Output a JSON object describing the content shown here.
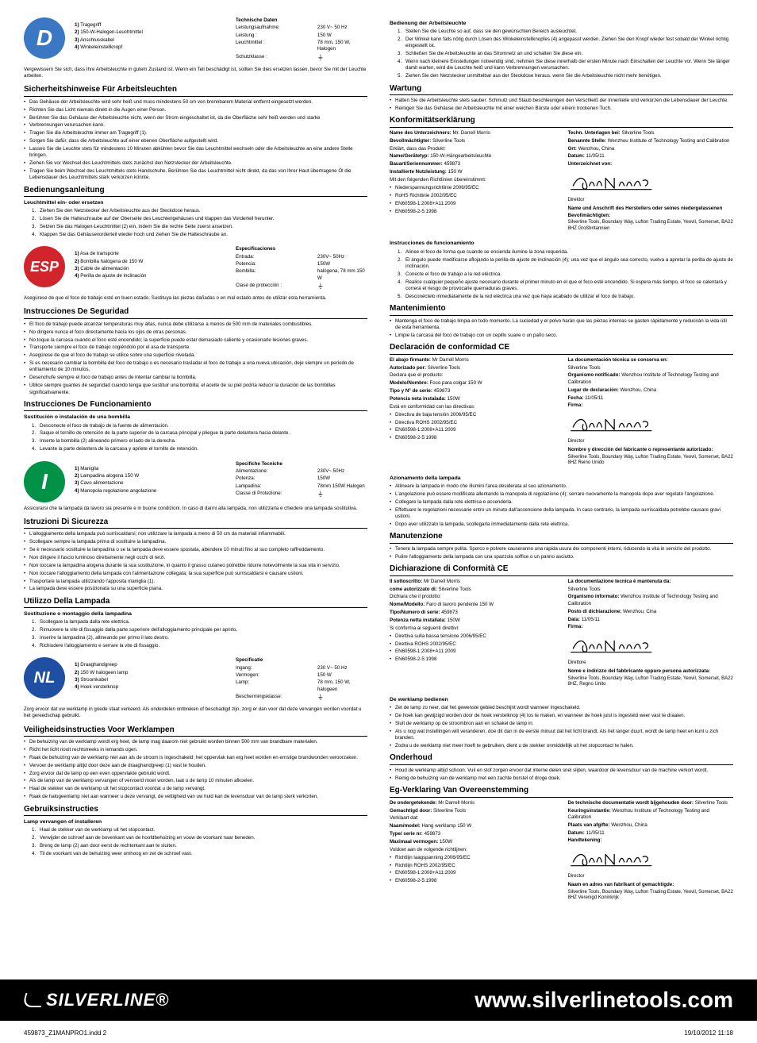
{
  "footer": {
    "brand": "SILVERLINE",
    "url": "www.silverlinetools.com"
  },
  "meta": {
    "file": "459873_Z1MANPRO1.indd   2",
    "timestamp": "19/10/2012   11:18"
  },
  "de": {
    "flag": "D",
    "parts": [
      {
        "n": "1)",
        "t": "Tragegriff"
      },
      {
        "n": "2)",
        "t": "150-W-Halogen-Leuchtmittel"
      },
      {
        "n": "3)",
        "t": "Anschlusskabel"
      },
      {
        "n": "4)",
        "t": "Winkeleinstellknopf"
      }
    ],
    "tech_title": "Technische Daten",
    "tech": [
      {
        "k": "Leistungsaufnahme:",
        "v": "230 V~  50 Hz"
      },
      {
        "k": "Leistung :",
        "v": "150 W"
      },
      {
        "k": "Leuchtmittel :",
        "v": "78 mm, 150 W, Halogen"
      },
      {
        "k": "Schutzklasse :",
        "v": "⏚"
      }
    ],
    "intro": "Vergewissern Sie sich, dass Ihre Arbeitsleuchte in gutem Zustand ist. Wenn ein Teil beschädigt ist, sollten Sie dies ersetzen lassen, bevor Sie mit der Leuchte arbeiten.",
    "safety_h": "Sicherheitshinweise Für Arbeitsleuchten",
    "safety": [
      "Das Gehäuse der Arbeitsleuchte wird sehr heiß und muss mindestens 50 cm von brennbarem Material entfernt eingesetzt werden.",
      "Richten Sie das Licht niemals direkt in die Augen einer Person.",
      "Berühren Sie das Gehäuse der Arbeitsleuchte nicht, wenn der Strom eingeschaltet ist, da die Oberfläche sehr heiß werden und starke",
      "Verbrennungen verursachen kann.",
      "Tragen Sie die Arbeitsleuchte immer am Tragegriff (1).",
      "Sorgen Sie dafür, dass die Arbeitsleuchte auf einer ebenen Oberfläche aufgestellt wird.",
      "Lassen Sie die Leuchte stets für mindestens 10 Minuten abkühlen bevor Sie das Leuchtmittel wechseln oder die Arbeitsleuchte an eine andere Stelle bringen.",
      "Ziehen Sie vor Wechsel des Leuchtmittels stets zunächst den Netzstecker der Arbeitsleuchte.",
      "Tragen Sie beim Wechsel des Leuchtmittels stets Handschuhe. Berühren Sie das Leuchtmittel nicht direkt, da das von Ihrer Haut übertragene Öl die Lebensdauer des Leuchtmittels stark verkürzen könnte."
    ],
    "oper_h": "Bedienungsanleitung",
    "oper_sub": "Leuchtmittel ein- oder ersetzen",
    "oper": [
      "Ziehen Sie den Netzstecker der Arbeitsleuchte aus der Steckdose heraus.",
      "Lösen Sie die Halteschraube auf der Oberseite des Leuchtengehäuses und klappen das Vorderteil herunter.",
      "Setzen Sie das Halogen-Leuchtmittel (2) ein, indem Sie die rechte Seite zuerst ansetzen.",
      "Klappen Sie das Gehäusevorderteil wieder hoch und ziehen Sie die Halteschraube an."
    ],
    "r_oper_h": "Bedienung der Arbeitsleuchte",
    "r_oper": [
      "Stellen Sie die Leuchte so auf, dass sie den gewünschten Bereich ausleuchtet.",
      "Der Winkel kann falls nötig durch Lösen des Winkeleinstellknopfes (4) angepasst werden. Ziehen Sie den Knopf wieder fest sobald der Winkel richtig eingestellt ist.",
      "Schließen Sie die Arbeitsleuchte an das Stromnetz an und schalten Sie diese ein.",
      "Wenn nach kleinere Einstellungen notwendig sind, nehmen Sie diese innerhalb der ersten Minute nach Einschalten der Leuchte vor. Wenn Sie länger damit warten, wird die Leuchte heiß und kann Verbrennungen verursachen.",
      "Ziehen Sie den Netzstecker unmittelbar aus der Steckdose heraus, wenn Sie die Arbeitsleuchte nicht mehr benötigen."
    ],
    "maint_h": "Wartung",
    "maint": [
      "Halten Sie die Arbeitsleuchte stets sauber. Schmutz und Staub beschleunigen den Verschleiß der Innenteile und verkürzen die Lebensdauer der Leuchte.",
      "Reinigen Sie das Gehäuse der Arbeitsleuchte mit einer weichen Bürste oder einem trockenen Tuch."
    ],
    "decl_h": "Konformitätserklärung",
    "decl_left": [
      {
        "b": "Name des Unterzeichners:",
        "t": " Mr. Darrell Morris"
      },
      {
        "b": "Bevollmächtigter:",
        "t": " Silverline Tools"
      },
      {
        "b": "",
        "t": "Erklärt, dass das Produkt:"
      },
      {
        "b": "Name/Gerätetyp:",
        "t": " 150-W-Hängearbeitsleuchte"
      },
      {
        "b": "Bauart/Seriennummer:",
        "t": " 459873"
      },
      {
        "b": "Installierte Nutzleistung:",
        "t": " 150 W"
      },
      {
        "b": "",
        "t": "Mit den folgenden Richtlinien übereinstimmt:"
      }
    ],
    "decl_dirs": [
      "Niederspannungsrichtlinie 2006/95/EC",
      "RoHS Richtlinie 2002/95/EC",
      "EN60598-1:2008+A11:2009",
      "EN60598-2-5:1998"
    ],
    "decl_right": [
      {
        "b": "Techn. Unterlagen bei:",
        "t": " Silverline Tools"
      },
      {
        "b": "Benannte Stelle:",
        "t": " Wenzhou Institute of Technology Testing and Calibration"
      },
      {
        "b": "Ort:",
        "t": " Wenzhou, China"
      },
      {
        "b": "Datum:",
        "t": " 11/05/11"
      },
      {
        "b": "Unterzeichnet von:",
        "t": ""
      }
    ],
    "decl_director": "Direktor",
    "decl_addr_title": "Name und Anschrift des Herstellers oder seines niedergelassenen Bevollmächtigten:",
    "decl_addr": "Silverline Tools, Boundary Way, Lufton Trading Estate, Yeovil, Somerset, BA22 8HZ Großbritannien"
  },
  "es": {
    "flag": "ESP",
    "parts": [
      {
        "n": "1)",
        "t": "Asa de transporte"
      },
      {
        "n": "2)",
        "t": "Bombilla halógena de 150 W"
      },
      {
        "n": "3)",
        "t": "Cable de alimentación"
      },
      {
        "n": "4)",
        "t": "Perilla de ajuste de inclinación"
      }
    ],
    "tech_title": "Especificaciones",
    "tech": [
      {
        "k": "Entrada:",
        "v": "230V~  50Hz"
      },
      {
        "k": "Potencia:",
        "v": "150W"
      },
      {
        "k": "Bombilla:",
        "v": "halógena, 78 mm 150 W"
      },
      {
        "k": "Clase de protección :",
        "v": "⏚"
      }
    ],
    "intro": "Asegúrese de que el foco de trabajo esté en buen estado. Sustituya las piezas dañadas o en mal estado antes de utilizar esta herramienta.",
    "safety_h": "Instrucciones De Seguridad",
    "safety": [
      "El foco de trabajo puede  alcanzar temperaturas muy altas, nunca debe utilizarse a menos de 500 mm de materiales combustibles.",
      "No dirigere nunca el foco directamente hacia los ojos de otras personas.",
      "No toque la carcasa cuando el foco esté encendido; la superficie puede estar demasiado caliente y ocasionarle lesiones graves.",
      "Transporte siempre el foco de trabajo cogiéndolo por el asa de transporte.",
      "Asegúrese de que el foco de trabajo se utilice sobre una superficie nivelada.",
      "Si es necesario cambiar la bombilla del foco de trabajo o es necesario trasladar el foco de trabajo a una nueva ubicación, deje siempre un periodo de enfriamiento de 10 minutos.",
      "Desenchufe siempre el foco de trabajo antes de intentar cambiar la bombilla.",
      "Utilice siempre guantes de seguridad cuando tenga que sustituir una bombilla; el aceite de su piel podría reducir la duración de las bombillas significativamente."
    ],
    "oper_h": "Instrucciones De Funcionamiento",
    "oper_sub": "Sustitución o instalación de una bombilla",
    "oper": [
      "Desconecte el foco de trabajo de la fuente de alimentación.",
      "Saque el tornillo de retención de la parte superior de la carcasa principal y pliegue la parte delantera hacia delante.",
      "Inserte la bombilla (2) alineando primero el lado de la derecha.",
      "Levante la parte delantera de la carcasa y apriete el tornillo de retención."
    ],
    "r_oper_h": "Instrucciones de funcionamiento",
    "r_oper": [
      "Alinee el foco de forma que cuando se encienda ilumine la zona requerida.",
      "El ángulo puede modificarse aflojando la perilla de ajuste de inclinación (4); una vez que el ángulo sea correcto, vuelva a apretar la perilla de ajuste de inclinación.",
      "Conecte el foco de trabajo a la red eléctrica.",
      "Realice cualquier pequeño ajuste necesario durante el primer minuto en el que el foco esté encendido. Si espera más tiempo, el foco se calentará y correrá el riesgo de provocarle quemaduras graves.",
      "Desconéctelo inmediatamente de la red eléctrica una vez que haya acabado de utilizar el foco de trabajo."
    ],
    "maint_h": "Mantenimiento",
    "maint": [
      "Mantenga el foco de trabajo limpia en todo momento. La suciedad y el polvo harán que las piezas internas se gasten rápidamente y reducirán la vida útil de esta herramienta.",
      "Limpie la carcasa del foco de trabajo con un cepillo suave o un paño seco."
    ],
    "decl_h": "Declaración de conformidad CE",
    "decl_left": [
      {
        "b": "El abajo firmante:",
        "t": " Mr Darrell Morris"
      },
      {
        "b": "Autorizado por:",
        "t": " Silverline Tools"
      },
      {
        "b": "",
        "t": "Declara que el producto:"
      },
      {
        "b": "Modelo/Nombre:",
        "t": " Foco para colgar 150 W"
      },
      {
        "b": "Tipo y N° de serie:",
        "t": " 459873"
      },
      {
        "b": "Potencia neta instalada:",
        "t": " 150W"
      },
      {
        "b": "",
        "t": "Está en conformidad con las directivas:"
      }
    ],
    "decl_dirs": [
      "Directiva de baja tensión 2006/95/EC",
      "Directiva ROHS 2002/95/EC",
      "EN60598-1:2008+A11:2009",
      "EN60598-2-5:1998"
    ],
    "decl_right": [
      {
        "b": "La documentación técnica se conserva en:",
        "t": ""
      },
      {
        "b": "",
        "t": "Silverline Tools"
      },
      {
        "b": "Organismo notificado:",
        "t": " Wenzhou Institute of Technology Testing and Calibration"
      },
      {
        "b": "Lugar de declaración:",
        "t": " Wenzhou, China"
      },
      {
        "b": "Fecha:",
        "t": " 11/05/11"
      },
      {
        "b": "Firma:",
        "t": ""
      }
    ],
    "decl_director": "Director",
    "decl_addr_title": "Nombre y dirección del fabricante o representante autorizado:",
    "decl_addr": "Silverline Tools, Boundary Way, Lufton Trading Estate, Yeovil, Somerset, BA22 8HZ Reino Unido"
  },
  "it": {
    "flag": "I",
    "parts": [
      {
        "n": "1)",
        "t": "Maniglia"
      },
      {
        "n": "2)",
        "t": "Lampadina alogena 150 W"
      },
      {
        "n": "3)",
        "t": "Cavo alimentazione"
      },
      {
        "n": "4)",
        "t": "Manopola regolazione angolazione"
      }
    ],
    "tech_title": "Specifiche Tecniche",
    "tech": [
      {
        "k": "Alimentazione:",
        "v": "230V~  50Hz"
      },
      {
        "k": "Potenza:",
        "v": "150W"
      },
      {
        "k": "Lampadina:",
        "v": "78mm 150W Halogen"
      },
      {
        "k": "Classe di Protezione:",
        "v": "⏚"
      }
    ],
    "intro": "Assicurarsi che la lampada da lavoro sia presente e in buone condizioni. In caso di danni alla lampada, non utilizzarla e chiedere una lampada sostitutiva.",
    "safety_h": "Istruzioni Di Sicurezza",
    "safety": [
      "L'alloggiamento della lampada può surriscaldarsi; non utilizzare la lampada a meno di 50 cm da materiali infiammabili.",
      "Scollegare sempre la lampada prima di sostituire la lampadina.",
      "Se è necessario sostituire la lampadina o se la lampada deve essere spostata, attendere 10 minuti fino al suo completo raffreddamento.",
      "Non dirigere il fascio luminoso direttamente negli occhi di terzi.",
      "Non toccare la lampadina alogena durante la sua sostituzione, in quanto il grasso cutaneo potrebbe ridurre notevolmente la sua vita in servizio.",
      "Non toccare l'alloggiamento della lampada con l'alimentazione collegata; la sua superficie può surriscaldarsi e causare ustioni.",
      "Trasportare la lampada utilizzando l'apposita maniglia (1).",
      "La lampada deve essere posizionata su una superficie piana."
    ],
    "oper_h": "Utilizzo Della Lampada",
    "oper_sub": "Sostituzione o montaggio della lampadina",
    "oper": [
      "Scollegare la lampada dalla rete elettrica.",
      "Rimuovere la vite di fissaggio dalla parte superiore dell'alloggiamento principale per aprirlo.",
      "Inserire la lampadina (2), allineando per primo il lato destro.",
      "Richiudere l'alloggiamento e serrare la vite di fissaggio."
    ],
    "r_oper_h": "Azionamento della lampada",
    "r_oper_b": [
      "Allineare la lampada in modo che illumini l'area desiderata al suo azionamento.",
      "L'angolazione può essere modificata allentando la manopola di regolazione (4); serrare nuovamente la manopola dopo aver regolato l'angolazione.",
      "Collegare la lampada dalla rete elettrica e accenderla.",
      "Effettuare le regolazioni necessarie entro un minuto dall'accensione della lampada. In caso contrario, la lampada surriscaldata potrebbe causare gravi ustioni.",
      "Dopo aver utilizzato la lampada, scollegarla immediatamente dalla rete elettrica."
    ],
    "maint_h": "Manutenzione",
    "maint": [
      "Tenere la lampada sempre pulita. Sporco e polvere causeranno una rapida usura dei componenti interni, riducendo la vita in servizio del prodotto.",
      "Pulire l'alloggiamento della lampada con una spazzola soffice o un panno asciutto."
    ],
    "decl_h": "Dichiarazione di Conformità CE",
    "decl_left": [
      {
        "b": "Il sottoscritto:",
        "t": " Mr Darrell Morris"
      },
      {
        "b": "come autorizzato di:",
        "t": " Silverline Tools"
      },
      {
        "b": "",
        "t": "Dichiara che il prodotto:"
      },
      {
        "b": "Nome/Modello:",
        "t": " Faro di lavoro pendente 150 W"
      },
      {
        "b": "Tipo/Numero di serie:",
        "t": " 459873"
      },
      {
        "b": "Potenza netta installata:",
        "t": " 150W"
      },
      {
        "b": "",
        "t": "Si conforma ai seguenti direttivi:"
      }
    ],
    "decl_dirs": [
      "Direttiva sulla bassa tensione 2006/95/EC",
      "Direttiva ROHS 2002/95/EC",
      "EN60598-1:2008+A11:2009",
      "EN60598-2-5:1998"
    ],
    "decl_right": [
      {
        "b": "La documentazione tecnica è mantenuta da:",
        "t": ""
      },
      {
        "b": "",
        "t": "Silverline Tools"
      },
      {
        "b": "Organismo informato:",
        "t": " Wenzhou Institute of Technology Testing and Calibration"
      },
      {
        "b": "Posto di dichiarazione:",
        "t": " Wenzhou, Cina"
      },
      {
        "b": "Data:",
        "t": " 11/05/11"
      },
      {
        "b": "Firma:",
        "t": ""
      }
    ],
    "decl_director": "Direttore",
    "decl_addr_title": "Nome e indirizzo del fabbricante oppure persona autorizzata:",
    "decl_addr": "Silverline Tools, Boundary Way, Lufton Trading Estate, Yeovil, Somerset, BA22 8HZ, Regno Unito"
  },
  "nl": {
    "flag": "NL",
    "parts": [
      {
        "n": "1)",
        "t": "Draaghandgreep"
      },
      {
        "n": "2)",
        "t": "150 W halogeen lamp"
      },
      {
        "n": "3)",
        "t": "Stroomkabel"
      },
      {
        "n": "4)",
        "t": "Hoek verstelknop"
      }
    ],
    "tech_title": "Specificatie",
    "tech": [
      {
        "k": "Ingang:",
        "v": "230 V~  50 Hz"
      },
      {
        "k": "Vermogen:",
        "v": "150 W"
      },
      {
        "k": "Lamp:",
        "v": "78 mm, 150 W, halogeen"
      },
      {
        "k": "Beschermingsklasse:",
        "v": "⏚"
      }
    ],
    "intro": "Zorg ervoor dat uw werklamp in goede staat verkeerd. Als onderdelen ontbreken of beschadigd zijn, zorg er dan voor dat deze vervangen worden voordat u het gereedschap gebruikt.",
    "safety_h": "Veiligheidsinstructies Voor Werklampen",
    "safety": [
      "De behuizing van de werklamp wordt erg heet, de lamp mag daarom niet gebruikt worden binnen 500 mm van brandbare materialen.",
      "Richt het licht nooit rechtstreeks in iemands ogen.",
      "Raak de behuizing van de werklamp niet aan als de stroom is ingeschakeld; het oppervlak kan erg heet worden en ernstige brandwonden veroorzaken.",
      "Vervoer de werklamp altijd door deze aan de draaghandgreep (1) vast te houden.",
      "Zorg ervoor dat de lamp op een even oppervlakte gebruikt wordt.",
      "Als de lamp van de werklamp vervangen of vervoerd moet worden, laat u de lamp 10 minuten afkoelen.",
      "Haal de stekker van de werklamp uit het stopcontact voordat u de lamp vervangt.",
      "Raak de halogeenlamp niet aan wanneer u deze vervangt, de vettigheid van uw huid kan de levensduur van de lamp sterk verkorten."
    ],
    "oper_h": "Gebruiksinstructies",
    "oper_sub": "Lamp vervangen of installeren",
    "oper": [
      "Haal de stekker van de werklamp uit het stopcontact.",
      "Verwijder de schroef aan de bovenkant van de hoofdbehuizing en vouw de voorkant naar beneden.",
      "Breng de lamp (2) aan door eerst de rechterkant aan te sluiten.",
      "Til de voorkant van de behuizing weer omhoog en zet de schroef vast."
    ],
    "r_oper_h": "De werklamp bedienen",
    "r_oper_b": [
      "Zet de lamp zo neer, dat het gewenste gebied beschijnt wordt wanneer ingeschakeld.",
      "De hoek kan gewijzigd worden door de hoek verstelknop (4) los te maken, en wanneer de hoek juist is ingesteld weer vast te draaien.",
      "Sluit de werklamp op de stroombron aan en schakel de lamp in.",
      "Als u nog wat instellingen wilt veranderen, doe dit dan in de eerste minuut dat het licht brandt. Als het langer duurt, wordt de lamp heet en kunt u zich branden.",
      "Zodra u de werklamp niet meer hoeft te gebruiken, dient u de stekker onmiddellijk uit het stopcontact te halen."
    ],
    "maint_h": "Onderhoud",
    "maint": [
      "Houd de werklamp altijd schoon. Vuil en stof zorgen ervoor dat interne delen snel slijten, waardoor de levensduur van de machine verkort wordt.",
      "Reinig de behuizing van de werklamp met een zachte borstel of droge doek."
    ],
    "decl_h": "Eg-Verklaring Van Overeenstemming",
    "decl_left": [
      {
        "b": "De ondergetekende:",
        "t": " Mr Darrell Morris"
      },
      {
        "b": "Gemachtigd door:",
        "t": " Silverline Tools"
      },
      {
        "b": "",
        "t": "Verklaart dat:"
      },
      {
        "b": "Naam/model:",
        "t": " Hang werklamp 150 W"
      },
      {
        "b": "Type/ serie nr:",
        "t": " 459873"
      },
      {
        "b": "Maximaal vermogen:",
        "t": " 150W"
      },
      {
        "b": "",
        "t": "Voldoet aan de volgende richtlijnen:"
      }
    ],
    "decl_dirs": [
      "Richtlijn laagspanning 2006/95/EC",
      "Richtlijn ROHS 2002/95/EC",
      "EN60598-1:2008+A11:2009",
      "EN60598-2-5:1998"
    ],
    "decl_right": [
      {
        "b": "De technische documentatie wordt bijgehouden door:",
        "t": " Silverline Tools"
      },
      {
        "b": "Keuringsinstantie:",
        "t": "  Wenzhou Institute of Technology Testing and Calibration"
      },
      {
        "b": "Plaats van afgifte:",
        "t": " Wenzhou, China"
      },
      {
        "b": "Datum:",
        "t": " 11/05/11"
      },
      {
        "b": "Handtekening:",
        "t": ""
      }
    ],
    "decl_director": "Director",
    "decl_addr_title": "Naam en adres van fabrikant of gemachtigde:",
    "decl_addr": "Silverline Tools, Boundary Way, Lufton Trading Estate, Yeovil, Somerset, BA22 8HZ Verenigd Koninkrijk"
  }
}
